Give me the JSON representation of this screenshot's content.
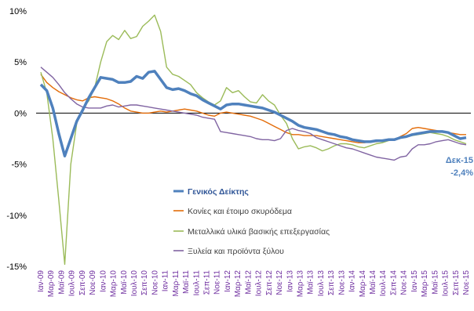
{
  "chart_data": {
    "type": "line",
    "title": "",
    "xlabel": "",
    "ylabel": "",
    "ylim": [
      -15,
      10
    ],
    "yticks": [
      10,
      5,
      0,
      -5,
      -10,
      -15
    ],
    "ytick_labels": [
      "10%",
      "5%",
      "0%",
      "-5%",
      "-10%",
      "-15%"
    ],
    "grid": false,
    "legend_position": "lower-left-inside",
    "x_labels": [
      "Ιαν-09",
      "Μαρ-09",
      "Μαϊ-09",
      "Ιουλ-09",
      "Σεπ-09",
      "Νοε-09",
      "Ιαν-10",
      "Μαρ-10",
      "Μαϊ-10",
      "Ιουλ-10",
      "Σεπ-10",
      "Νοε-10",
      "Ιαν-11",
      "Μαρ-11",
      "Μαϊ-11",
      "Ιουλ-11",
      "Σεπ-11",
      "Νοε-11",
      "Ιαν-12",
      "Μαρ-12",
      "Μαϊ-12",
      "Ιουλ-12",
      "Σεπ-12",
      "Νοε-12",
      "Ιαν-13",
      "Μαρ-13",
      "Μαϊ-13",
      "Ιουλ-13",
      "Σεπ-13",
      "Νοε-13",
      "Ιαν-14",
      "Μαρ-14",
      "Μαϊ-14",
      "Ιουλ-14",
      "Σεπ-14",
      "Νοε-14",
      "Ιαν-15",
      "Μαρ-15",
      "Μαϊ-15",
      "Ιουλ-15",
      "Σεπ-15",
      "Νοε-15"
    ],
    "annotation": {
      "label": "Δεκ-15",
      "value": "-2,4%"
    },
    "series": [
      {
        "name": "Γενικός Δείκτης",
        "color": "#4f81bd",
        "width": 3.5,
        "values": [
          2.8,
          2.2,
          0.5,
          -2.0,
          -4.2,
          -2.5,
          -0.8,
          0.3,
          1.5,
          2.5,
          3.5,
          3.4,
          3.3,
          3.0,
          3.0,
          3.1,
          3.6,
          3.4,
          4.0,
          4.1,
          3.3,
          2.5,
          2.3,
          2.4,
          2.2,
          1.9,
          1.7,
          1.3,
          1.0,
          0.7,
          0.4,
          0.8,
          0.9,
          0.9,
          0.8,
          0.7,
          0.6,
          0.5,
          0.3,
          0.1,
          -0.2,
          -0.5,
          -0.8,
          -1.2,
          -1.4,
          -1.5,
          -1.6,
          -1.8,
          -2.0,
          -2.1,
          -2.3,
          -2.4,
          -2.6,
          -2.7,
          -2.8,
          -2.8,
          -2.7,
          -2.7,
          -2.6,
          -2.6,
          -2.4,
          -2.3,
          -2.1,
          -2.0,
          -1.9,
          -1.8,
          -1.8,
          -1.8,
          -1.9,
          -2.2,
          -2.5,
          -2.4
        ]
      },
      {
        "name": "Κονίες και έτοιμο σκυρόδεμα",
        "color": "#e36c09",
        "width": 1.4,
        "values": [
          3.8,
          3.0,
          2.5,
          2.1,
          1.8,
          1.5,
          1.3,
          1.2,
          1.5,
          1.6,
          1.5,
          1.4,
          1.2,
          0.9,
          0.5,
          0.2,
          0.1,
          0.0,
          0.0,
          0.1,
          0.2,
          0.1,
          0.2,
          0.3,
          0.4,
          0.3,
          0.2,
          0.0,
          -0.2,
          -0.3,
          0.0,
          0.1,
          0.0,
          -0.1,
          -0.2,
          -0.3,
          -0.5,
          -0.7,
          -1.0,
          -1.3,
          -1.6,
          -1.9,
          -2.1,
          -2.1,
          -2.2,
          -2.2,
          -2.2,
          -2.3,
          -2.4,
          -2.5,
          -2.6,
          -2.7,
          -2.8,
          -2.9,
          -2.9,
          -2.8,
          -2.8,
          -2.7,
          -2.6,
          -2.6,
          -2.3,
          -2.0,
          -1.5,
          -1.4,
          -1.5,
          -1.6,
          -1.7,
          -1.8,
          -1.9,
          -2.0,
          -2.1,
          -2.1
        ]
      },
      {
        "name": "Μεταλλικά υλικά βασικής επεξεργασίας",
        "color": "#9bbb59",
        "width": 1.4,
        "values": [
          4.0,
          2.0,
          -2.5,
          -8.5,
          -14.8,
          -5.0,
          -1.0,
          0.5,
          1.2,
          2.5,
          5.0,
          7.0,
          7.6,
          7.2,
          8.1,
          7.3,
          7.5,
          8.5,
          9.0,
          9.6,
          8.0,
          4.5,
          3.8,
          3.6,
          3.2,
          2.8,
          2.0,
          1.5,
          1.1,
          0.8,
          1.2,
          2.5,
          2.0,
          2.2,
          1.6,
          1.1,
          1.0,
          1.8,
          1.2,
          0.8,
          -0.2,
          -1.0,
          -2.5,
          -3.5,
          -3.3,
          -3.2,
          -3.4,
          -3.7,
          -3.5,
          -3.2,
          -3.0,
          -3.0,
          -3.1,
          -3.3,
          -3.4,
          -3.2,
          -3.0,
          -2.9,
          -2.7,
          -2.6,
          -2.4,
          -2.3,
          -2.2,
          -2.1,
          -2.0,
          -1.9,
          -2.0,
          -2.1,
          -2.3,
          -2.6,
          -2.8,
          -3.0
        ]
      },
      {
        "name": "Ξυλεία και προϊόντα ξύλου",
        "color": "#8064a2",
        "width": 1.4,
        "values": [
          4.5,
          4.0,
          3.5,
          2.8,
          2.0,
          1.4,
          0.9,
          0.6,
          0.5,
          0.5,
          0.5,
          0.7,
          0.8,
          0.6,
          0.7,
          0.8,
          0.8,
          0.7,
          0.6,
          0.5,
          0.4,
          0.3,
          0.2,
          0.1,
          0.0,
          -0.1,
          -0.2,
          -0.4,
          -0.5,
          -0.6,
          -1.8,
          -1.9,
          -2.0,
          -2.1,
          -2.2,
          -2.3,
          -2.5,
          -2.6,
          -2.6,
          -2.7,
          -2.5,
          -1.7,
          -1.5,
          -1.7,
          -1.8,
          -2.0,
          -2.4,
          -2.6,
          -2.8,
          -3.0,
          -3.2,
          -3.4,
          -3.5,
          -3.7,
          -3.9,
          -4.1,
          -4.3,
          -4.4,
          -4.5,
          -4.6,
          -4.3,
          -4.2,
          -3.5,
          -3.1,
          -3.1,
          -3.0,
          -2.8,
          -2.7,
          -2.6,
          -2.8,
          -3.0,
          -3.1
        ]
      }
    ]
  }
}
